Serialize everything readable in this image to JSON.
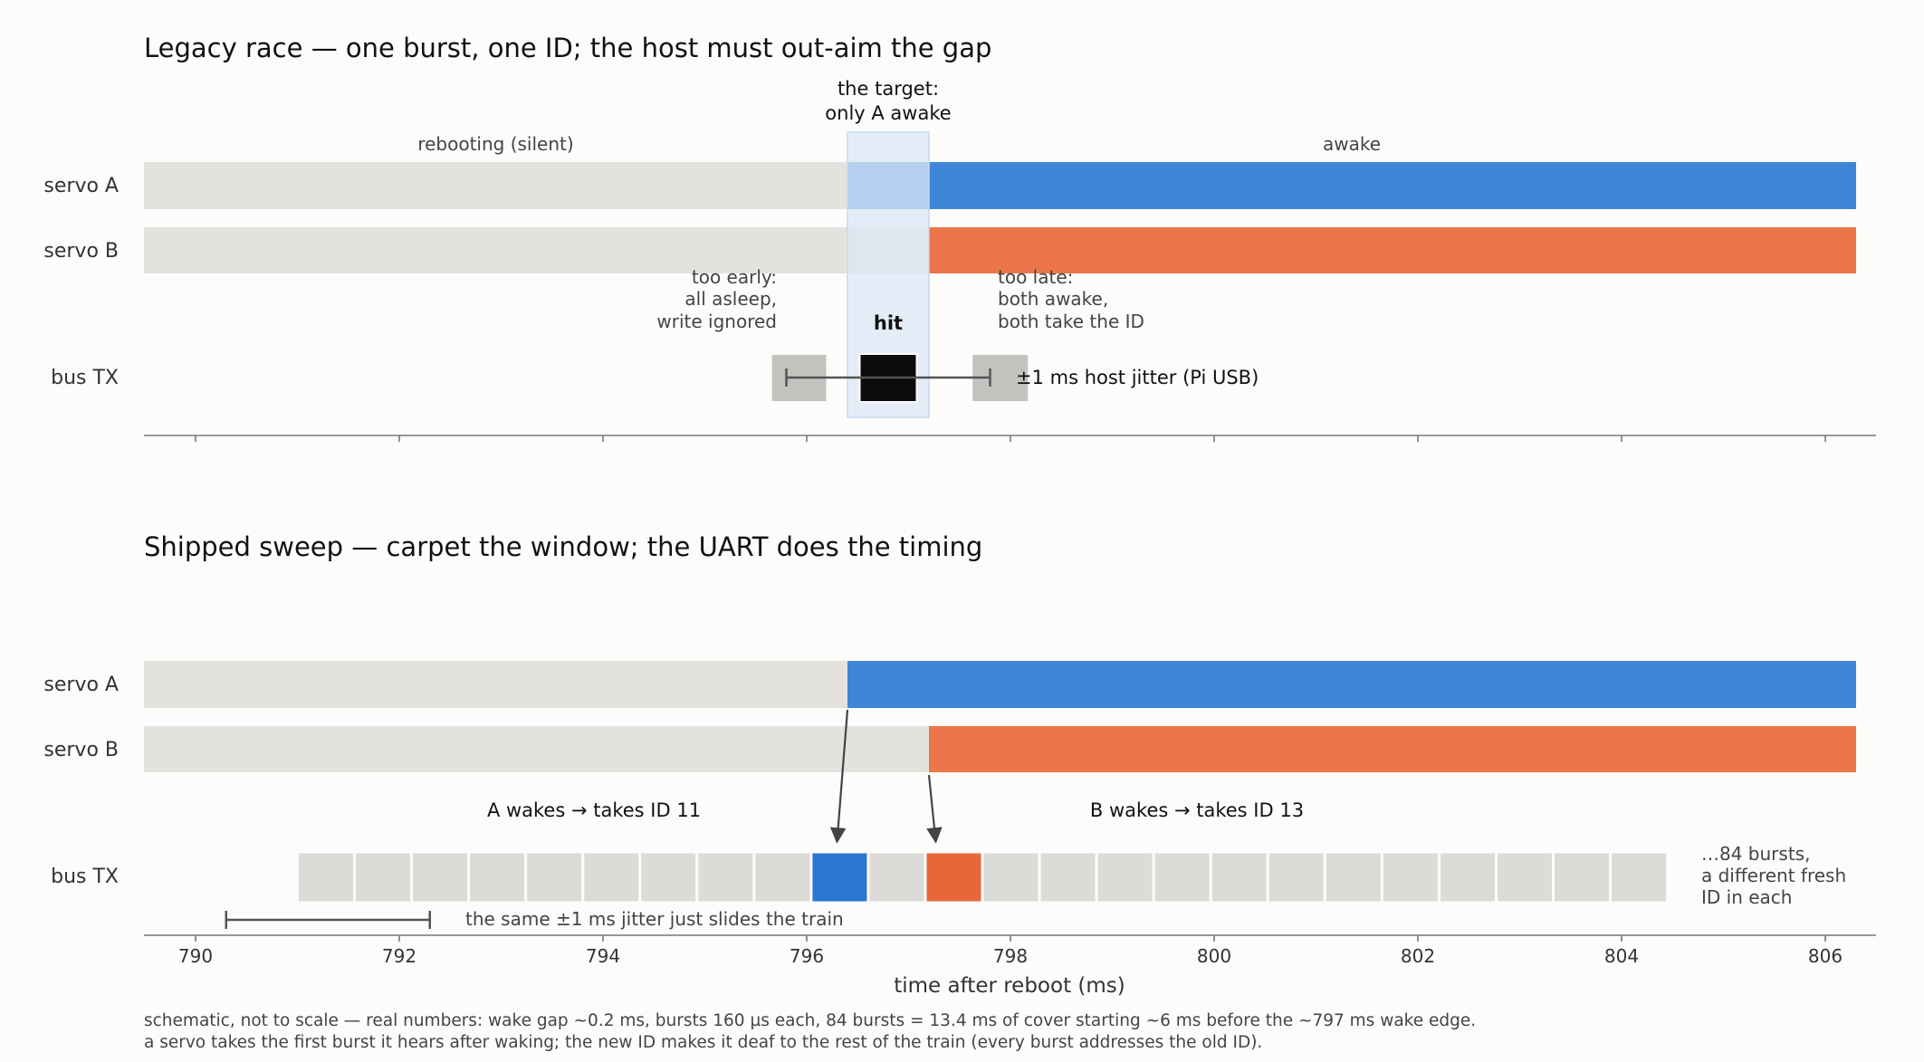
{
  "colors": {
    "background": "#fcfcfb",
    "asleep": "#e4e2df",
    "servo_a": "#3f86d8",
    "servo_b": "#ec764a",
    "target_window": "#dce8f6",
    "hit": "#0b0b0b",
    "miss": "#c4c2bf",
    "burst": "#dddbd8",
    "burst_a": "#2a76d2",
    "burst_b": "#e8663a"
  },
  "axis": {
    "label": "time after reboot (ms)",
    "range": [
      789.5,
      806.5
    ],
    "ticks": [
      790,
      792,
      794,
      796,
      798,
      800,
      802,
      804,
      806
    ]
  },
  "panel_top": {
    "title": "Legacy race — one burst, one ID; the host must out-aim the gap",
    "rows": [
      "servo A",
      "servo B",
      "bus TX"
    ],
    "state_labels": {
      "asleep": "rebooting (silent)",
      "awake": "awake"
    },
    "target_label": [
      "the target:",
      "only A awake"
    ],
    "wake_a_ms": 796.4,
    "wake_b_ms": 797.2,
    "early_label": [
      "too early:",
      "all asleep,",
      "write ignored"
    ],
    "hit_label": "hit",
    "late_label": [
      "too late:",
      "both awake,",
      "both take the ID"
    ],
    "bursts": [
      {
        "start": 795.65,
        "end": 796.2,
        "kind": "miss"
      },
      {
        "start": 796.52,
        "end": 797.08,
        "kind": "hit"
      },
      {
        "start": 797.62,
        "end": 798.18,
        "kind": "miss"
      }
    ],
    "jitter": {
      "from": 795.8,
      "to": 797.8,
      "label": "±1 ms host jitter (Pi USB)"
    }
  },
  "panel_bottom": {
    "title": "Shipped sweep — carpet the window; the UART does the timing",
    "rows": [
      "servo A",
      "servo B",
      "bus TX"
    ],
    "wake_a_ms": 796.4,
    "wake_b_ms": 797.2,
    "annotation_a": "A wakes → takes ID 11",
    "annotation_b": "B wakes → takes ID 13",
    "train": {
      "start": 791.0,
      "end": 804.45,
      "count": 24,
      "taken_a_index": 9,
      "taken_b_index": 11
    },
    "train_label": [
      "…84 bursts,",
      "a different fresh",
      "ID in each"
    ],
    "jitter": {
      "from": 790.3,
      "to": 792.3,
      "label": "the same ±1 ms jitter just slides the train"
    }
  },
  "footnote": [
    "schematic, not to scale — real numbers: wake gap ~0.2 ms, bursts 160 µs each, 84 bursts = 13.4 ms of cover starting ~6 ms before the ~797 ms wake edge.",
    "a servo takes the first burst it hears after waking; the new ID makes it deaf to the rest of the train (every burst addresses the old ID)."
  ]
}
